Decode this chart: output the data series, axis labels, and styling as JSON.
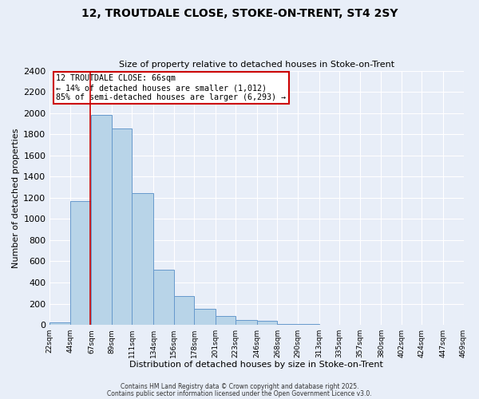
{
  "title_line1": "12, TROUTDALE CLOSE, STOKE-ON-TRENT, ST4 2SY",
  "title_line2": "Size of property relative to detached houses in Stoke-on-Trent",
  "xlabel": "Distribution of detached houses by size in Stoke-on-Trent",
  "ylabel": "Number of detached properties",
  "bar_edges": [
    22,
    44,
    67,
    89,
    111,
    134,
    156,
    178,
    201,
    223,
    246,
    268,
    290,
    313,
    335,
    357,
    380,
    402,
    424,
    447,
    469
  ],
  "bar_heights": [
    25,
    1170,
    1980,
    1855,
    1245,
    520,
    275,
    150,
    85,
    45,
    35,
    12,
    5,
    2,
    1,
    0,
    0,
    0,
    0,
    0
  ],
  "bar_color": "#b8d4e8",
  "bar_edge_color": "#6699cc",
  "annotation_line": "12 TROUTDALE CLOSE: 66sqm\n← 14% of detached houses are smaller (1,012)\n85% of semi-detached houses are larger (6,293) →",
  "annotation_box_color": "white",
  "annotation_box_edge_color": "#cc0000",
  "vline_x": 66,
  "vline_color": "#cc0000",
  "ylim": [
    0,
    2400
  ],
  "yticks": [
    0,
    200,
    400,
    600,
    800,
    1000,
    1200,
    1400,
    1600,
    1800,
    2000,
    2200,
    2400
  ],
  "tick_labels": [
    "22sqm",
    "44sqm",
    "67sqm",
    "89sqm",
    "111sqm",
    "134sqm",
    "156sqm",
    "178sqm",
    "201sqm",
    "223sqm",
    "246sqm",
    "268sqm",
    "290sqm",
    "313sqm",
    "335sqm",
    "357sqm",
    "380sqm",
    "402sqm",
    "424sqm",
    "447sqm",
    "469sqm"
  ],
  "bg_color": "#e8eef8",
  "grid_color": "white",
  "footnote1": "Contains HM Land Registry data © Crown copyright and database right 2025.",
  "footnote2": "Contains public sector information licensed under the Open Government Licence v3.0."
}
